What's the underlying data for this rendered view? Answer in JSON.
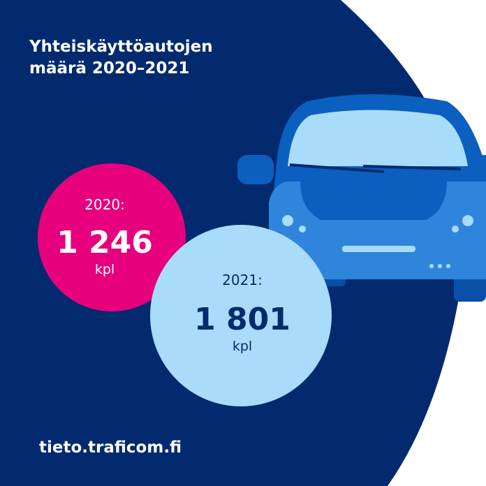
{
  "header": {
    "title": [
      "Yhteiskäyttöautojen",
      "määrä 2020–2021"
    ]
  },
  "items": [
    {
      "year": "2020:",
      "count": "1 246",
      "unit": "kpl"
    },
    {
      "year": "2021:",
      "count": "1 801",
      "unit": "kpl"
    }
  ],
  "footer": {
    "url": "tieto.traficom.fi"
  }
}
